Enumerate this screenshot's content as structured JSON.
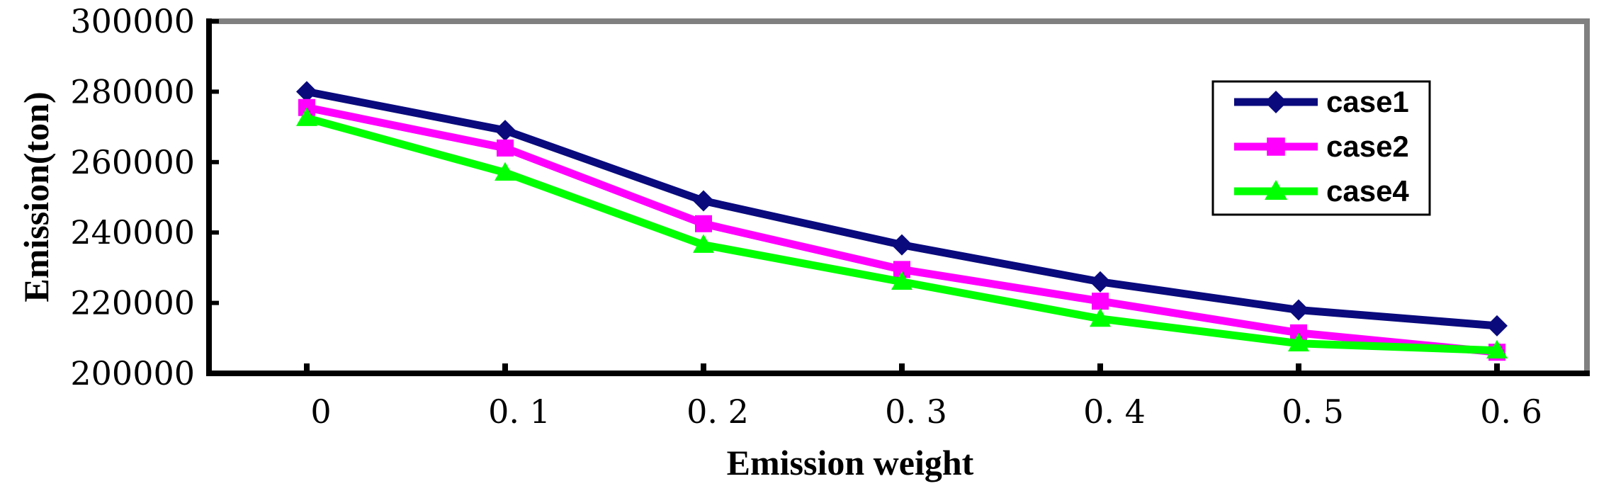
{
  "chart_data": {
    "type": "line",
    "title": "",
    "xlabel": "Emission weight",
    "ylabel": "Emission(ton)",
    "categories": [
      "0",
      "0. 1",
      "0. 2",
      "0. 3",
      "0. 4",
      "0. 5",
      "0. 6"
    ],
    "ylim": [
      200000,
      300000
    ],
    "yticks": [
      200000,
      220000,
      240000,
      260000,
      280000,
      300000
    ],
    "ytick_labels": [
      "200000",
      "220000",
      "240000",
      "260000",
      "280000",
      "300000"
    ],
    "grid": false,
    "legend_position": "top-right",
    "series": [
      {
        "name": "case1",
        "color": "#0a0a7d",
        "marker": "diamond",
        "values": [
          280000,
          269000,
          249000,
          236500,
          226000,
          218000,
          213500
        ]
      },
      {
        "name": "case2",
        "color": "#ff00ff",
        "marker": "square",
        "values": [
          275500,
          264000,
          242500,
          229500,
          220500,
          211500,
          206000
        ]
      },
      {
        "name": "case4",
        "color": "#00ff00",
        "marker": "triangle",
        "values": [
          272500,
          257000,
          236500,
          226000,
          215500,
          208500,
          206500
        ]
      }
    ]
  },
  "colors": {
    "frame": "#808080",
    "axis": "#000000"
  }
}
